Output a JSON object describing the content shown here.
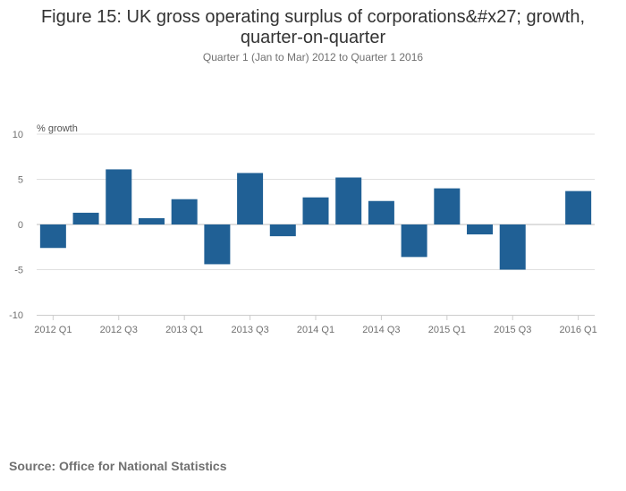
{
  "title_line1": "Figure 15: UK gross operating surplus of corporations&#x27; growth,",
  "title_line2": "quarter-on-quarter",
  "subtitle": "Quarter 1 (Jan to Mar) 2012 to Quarter 1 2016",
  "source": "Source: Office for National Statistics",
  "colors": {
    "bar": "#206095",
    "grid": "#e0e0e0",
    "axis": "#cccccc"
  },
  "chart_data": {
    "type": "bar",
    "title": "Figure 15: UK gross operating surplus of corporations&#x27; growth, quarter-on-quarter",
    "subtitle": "Quarter 1 (Jan to Mar) 2012 to Quarter 1 2016",
    "ylabel": "% growth",
    "xlabel": "",
    "ylim": [
      -10,
      10
    ],
    "yticks": [
      10,
      5,
      0,
      -5,
      -10
    ],
    "grid": true,
    "categories": [
      "2012 Q1",
      "2012 Q2",
      "2012 Q3",
      "2012 Q4",
      "2013 Q1",
      "2013 Q2",
      "2013 Q3",
      "2013 Q4",
      "2014 Q1",
      "2014 Q2",
      "2014 Q3",
      "2014 Q4",
      "2015 Q1",
      "2015 Q2",
      "2015 Q3",
      "2015 Q4",
      "2016 Q1"
    ],
    "x_tick_labels": [
      "2012 Q1",
      "2012 Q3",
      "2013 Q1",
      "2013 Q3",
      "2014 Q1",
      "2014 Q3",
      "2015 Q1",
      "2015 Q3",
      "2016 Q1"
    ],
    "values": [
      -2.6,
      1.3,
      6.1,
      0.7,
      2.8,
      -4.4,
      5.7,
      -1.3,
      3.0,
      5.2,
      2.6,
      -3.6,
      4.0,
      -1.1,
      -5.0,
      0.0,
      3.7
    ]
  }
}
